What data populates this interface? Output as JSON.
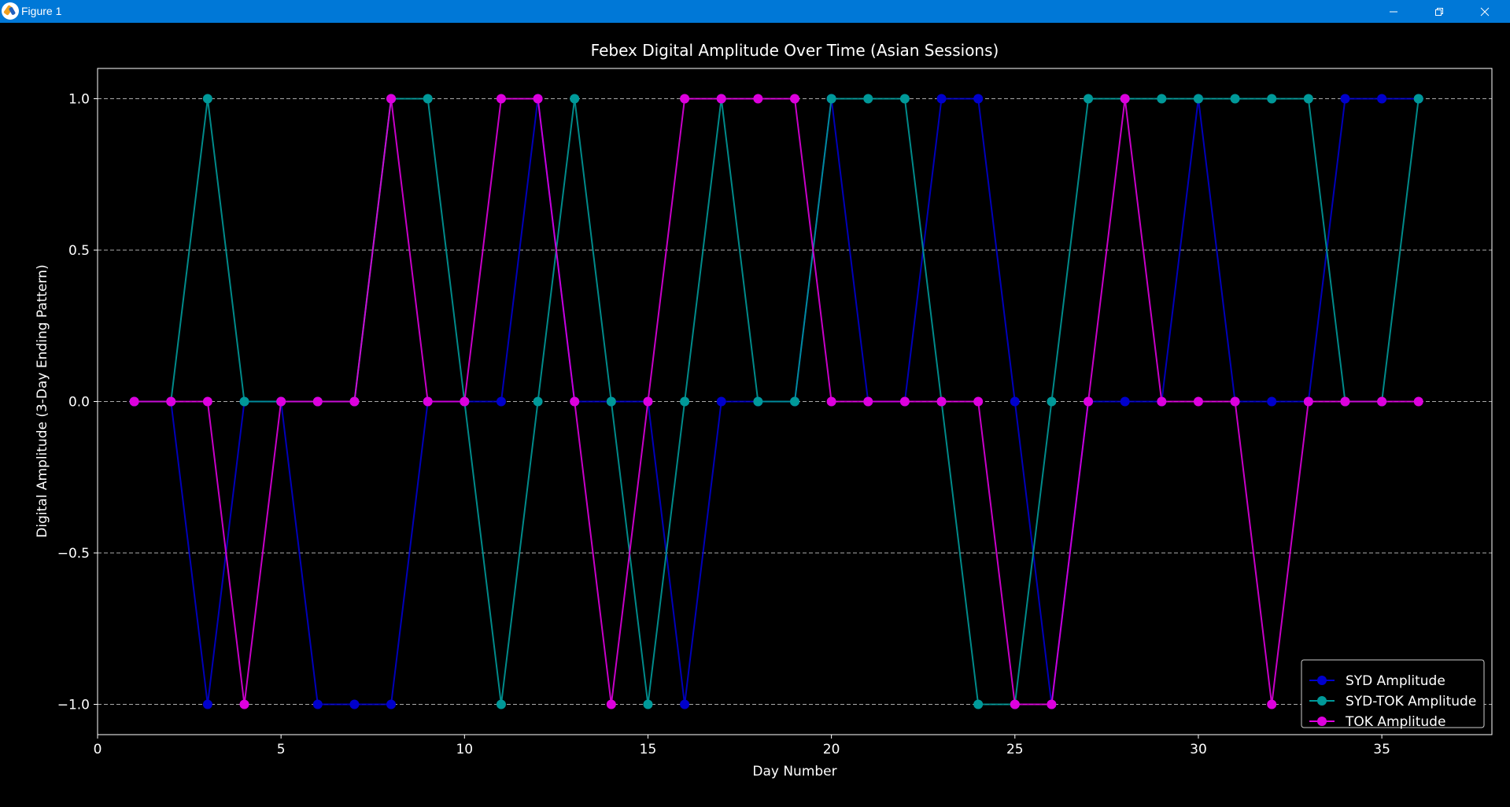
{
  "window": {
    "title": "Figure 1"
  },
  "chart_data": {
    "type": "line",
    "title": "Febex Digital Amplitude Over Time (Asian Sessions)",
    "xlabel": "Day Number",
    "ylabel": "Digital Amplitude (3-Day Ending Pattern)",
    "xlim": [
      0,
      38
    ],
    "ylim": [
      -1.1,
      1.1
    ],
    "xticks": [
      0,
      5,
      10,
      15,
      20,
      25,
      30,
      35
    ],
    "xtick_labels": [
      "0",
      "5",
      "10",
      "15",
      "20",
      "25",
      "30",
      "35"
    ],
    "yticks": [
      1.0,
      0.5,
      0.0,
      -0.5,
      -1.0
    ],
    "ytick_labels": [
      "1.0",
      "0.5",
      "0.0",
      "−0.5",
      "−1.0"
    ],
    "grid": "y-dashed",
    "legend_position": "lower-right",
    "x": [
      1,
      2,
      3,
      4,
      5,
      6,
      7,
      8,
      9,
      10,
      11,
      12,
      13,
      14,
      15,
      16,
      17,
      18,
      19,
      20,
      21,
      22,
      23,
      24,
      25,
      26,
      27,
      28,
      29,
      30,
      31,
      32,
      33,
      34,
      35,
      36
    ],
    "series": [
      {
        "name": "SYD Amplitude",
        "color": "#0000cc",
        "values": [
          0,
          0,
          -1,
          0,
          0,
          -1,
          -1,
          -1,
          0,
          0,
          0,
          1,
          0,
          0,
          0,
          -1,
          0,
          0,
          0,
          1,
          0,
          0,
          1,
          1,
          0,
          -1,
          0,
          0,
          0,
          1,
          0,
          0,
          0,
          1,
          1,
          1
        ]
      },
      {
        "name": "SYD-TOK Amplitude",
        "color": "#009999",
        "values": [
          0,
          0,
          1,
          0,
          0,
          0,
          0,
          1,
          1,
          0,
          -1,
          0,
          1,
          0,
          -1,
          0,
          1,
          0,
          0,
          1,
          1,
          1,
          0,
          -1,
          -1,
          0,
          1,
          1,
          1,
          1,
          1,
          1,
          1,
          0,
          0,
          1
        ]
      },
      {
        "name": "TOK Amplitude",
        "color": "#dd00dd",
        "values": [
          0,
          0,
          0,
          -1,
          0,
          0,
          0,
          1,
          0,
          0,
          1,
          1,
          0,
          -1,
          0,
          1,
          1,
          1,
          1,
          0,
          0,
          0,
          0,
          0,
          -1,
          -1,
          0,
          1,
          0,
          0,
          0,
          -1,
          0,
          0,
          0,
          0
        ]
      }
    ]
  }
}
